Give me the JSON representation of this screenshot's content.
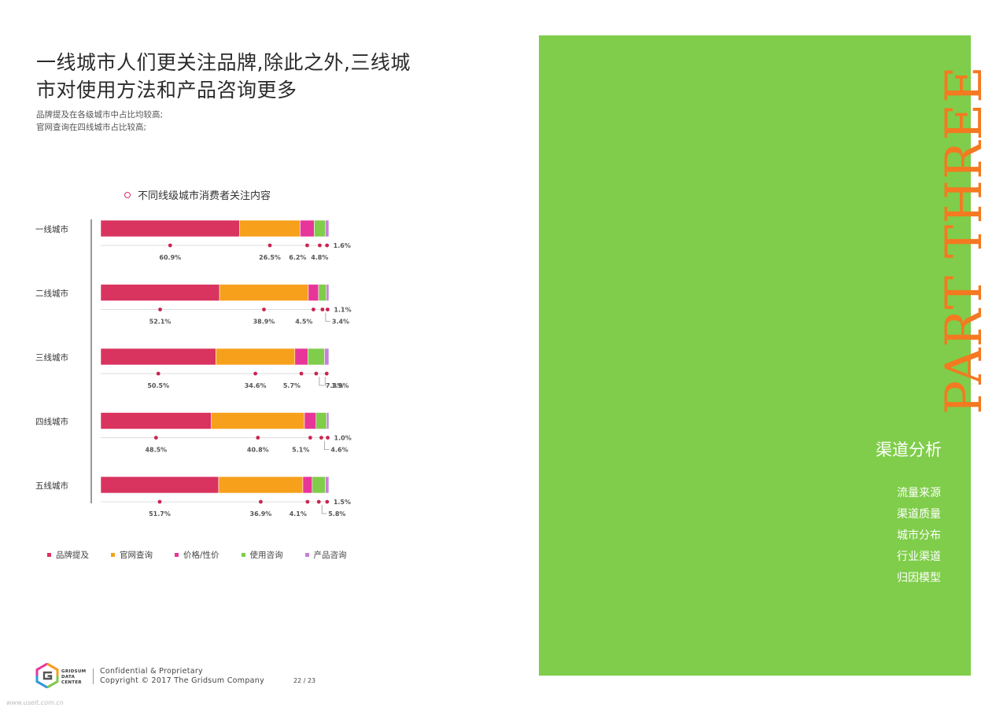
{
  "title_lines": [
    "一线城市人们更关注品牌,除此之外,三线城",
    "市对使用方法和产品咨询更多"
  ],
  "subtitle_lines": [
    "品牌提及在各级城市中占比均较高;",
    "官网查询在四线城市占比较高;"
  ],
  "colors": {
    "brand": "#d9335f",
    "official": "#f7a01b",
    "price": "#e8359a",
    "usage": "#7fcd4a",
    "product": "#c580d8",
    "panel": "#7fcd4a",
    "accent_text": "#f47920"
  },
  "chart_data": {
    "type": "bar",
    "orientation": "horizontal",
    "stacked": true,
    "title": "不同线级城市消费者关注内容",
    "categories": [
      "一线城市",
      "二线城市",
      "三线城市",
      "四线城市",
      "五线城市"
    ],
    "series": [
      {
        "name": "品牌提及",
        "values": [
          60.9,
          52.1,
          50.5,
          48.5,
          51.7
        ]
      },
      {
        "name": "官网查询",
        "values": [
          26.5,
          38.9,
          34.6,
          40.8,
          36.9
        ]
      },
      {
        "name": "价格/性价",
        "values": [
          6.2,
          4.5,
          5.7,
          5.1,
          4.1
        ]
      },
      {
        "name": "使用咨询",
        "values": [
          4.8,
          3.4,
          7.3,
          4.6,
          5.8
        ]
      },
      {
        "name": "产品咨询",
        "values": [
          1.6,
          1.1,
          1.9,
          1.0,
          1.5
        ]
      }
    ],
    "value_suffix": "%",
    "legend_position": "bottom",
    "grid": false
  },
  "footer": {
    "logo_lines": [
      "GRIDSUM",
      "DATA",
      "CENTER"
    ],
    "confidential": "Confidential & Proprietary",
    "copyright": "Copyright © 2017 The Gridsum Company",
    "page": "22 / 23"
  },
  "watermark": "www.useit.com.cn",
  "right_panel": {
    "vertical_text": "PART THREE",
    "section_title": "渠道分析",
    "menu": [
      "流量来源",
      "渠道质量",
      "城市分布",
      "行业渠道",
      "归因模型"
    ]
  }
}
